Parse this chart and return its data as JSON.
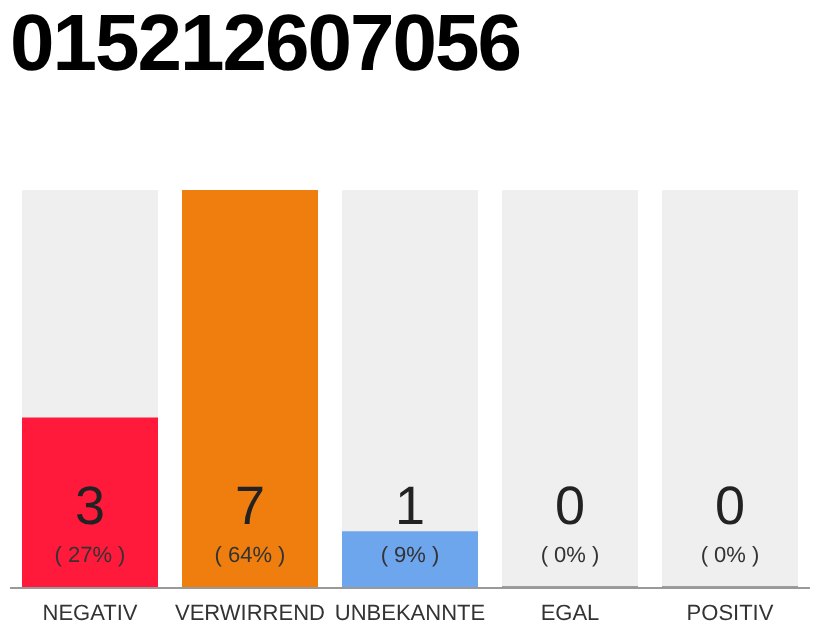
{
  "chart_data": {
    "type": "bar",
    "title": "015212607056",
    "categories": [
      "NEGATIV",
      "VERWIRREND",
      "UNBEKANNTE",
      "EGAL",
      "POSITIV"
    ],
    "values": [
      3,
      7,
      1,
      0,
      0
    ],
    "colors": [
      "#ff1a3c",
      "#f07e0e",
      "#6ea6ee",
      "#9e9e9e",
      "#9e9e9e"
    ],
    "ylim": [
      0,
      7
    ],
    "tick_labels": "x",
    "data_labels": true,
    "grid": false,
    "legend": false,
    "annotations": [
      "( 27% )",
      "( 64% )",
      "( 9% )",
      "( 0% )",
      "( 0% )"
    ]
  }
}
